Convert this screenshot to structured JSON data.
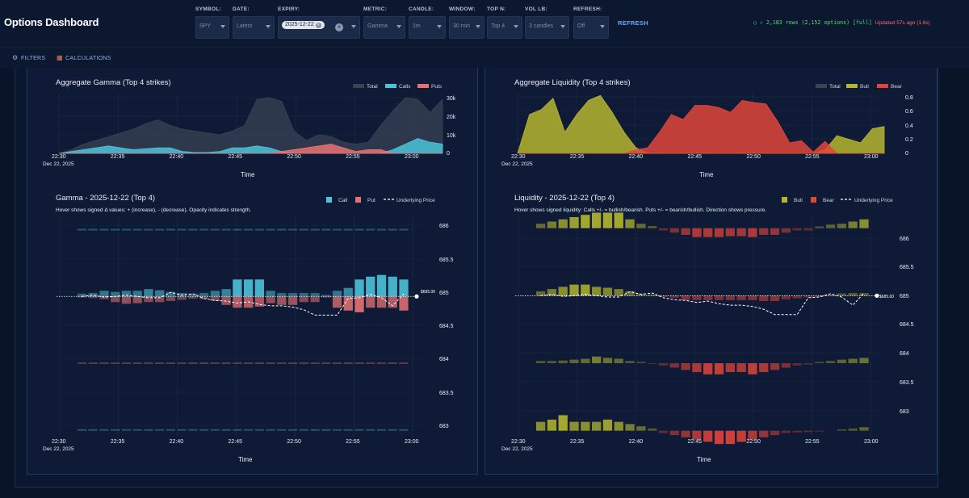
{
  "app": {
    "title": "Options Dashboard"
  },
  "controls": {
    "symbol": {
      "label": "SYMBOL:",
      "value": "SPY"
    },
    "date": {
      "label": "DATE:",
      "value": "Latest"
    },
    "expiry": {
      "label": "EXPIRY:",
      "value": "2025-12-22"
    },
    "metric": {
      "label": "METRIC:",
      "value": "Gamma"
    },
    "candle": {
      "label": "CANDLE:",
      "value": "1m"
    },
    "window": {
      "label": "WINDOW:",
      "value": "30 min"
    },
    "topn": {
      "label": "TOP N:",
      "value": "Top 4"
    },
    "vollb": {
      "label": "VOL LB:",
      "value": "3 candles"
    },
    "refresh": {
      "label": "REFRESH:",
      "value": "Off"
    },
    "refresh_button": "REFRESH"
  },
  "status": {
    "rows": "○ ✓ 2,183 rows (2,152 options) [full]",
    "updated": "Updated 57s ago (1.6s)"
  },
  "tabs": [
    {
      "label": "FILTERS",
      "icon": "gear-icon"
    },
    {
      "label": "CALCULATIONS",
      "icon": "calculator-icon"
    }
  ],
  "colors": {
    "call": "#4bc3d9",
    "put": "#e57373",
    "bull": "#b5b62f",
    "bear": "#e0453a",
    "total": "#3a4354"
  },
  "time_axis": {
    "ticks": [
      "22:30",
      "22:35",
      "22:40",
      "22:45",
      "22:50",
      "22:55",
      "23:00"
    ],
    "date_label": "Dec 22, 2025",
    "title": "Time"
  },
  "agg_gamma": {
    "title": "Aggregate Gamma (Top 4 strikes)",
    "legend": [
      "Total",
      "Calls",
      "Puts"
    ],
    "y_ticks": [
      "30k",
      "20k",
      "10k",
      "0"
    ],
    "chart_data": {
      "type": "area",
      "ylim": [
        0,
        30000
      ],
      "x_minutes": [
        0,
        1,
        2,
        3,
        4,
        5,
        6,
        7,
        8,
        9,
        10,
        11,
        12,
        13,
        14,
        15,
        16,
        17,
        18,
        19,
        20,
        21,
        22,
        23,
        24,
        25,
        26,
        27,
        28,
        29,
        30,
        31
      ],
      "series": [
        {
          "name": "Total",
          "values": [
            0,
            2000,
            5000,
            7000,
            9000,
            11000,
            13000,
            16000,
            18000,
            15000,
            13000,
            12000,
            11000,
            10000,
            12000,
            15000,
            29000,
            30000,
            28000,
            12000,
            7000,
            10000,
            9000,
            6000,
            5000,
            6000,
            15000,
            23000,
            30000,
            29000,
            22000,
            29000
          ]
        },
        {
          "name": "Calls",
          "values": [
            0,
            1000,
            2000,
            3000,
            4000,
            3000,
            2000,
            2500,
            3000,
            3000,
            1000,
            500,
            500,
            1000,
            3000,
            3000,
            4000,
            3000,
            1000,
            0,
            0,
            0,
            0,
            0,
            0,
            0,
            0,
            2000,
            5000,
            8000,
            6000,
            5000
          ]
        },
        {
          "name": "Puts",
          "values": [
            0,
            0,
            0,
            0,
            0,
            0,
            0,
            0,
            0,
            0,
            0,
            0,
            0,
            0,
            0,
            0,
            0,
            0,
            1000,
            2000,
            3000,
            4000,
            5000,
            3000,
            1000,
            2000,
            2000,
            0,
            0,
            0,
            0,
            0
          ]
        }
      ]
    }
  },
  "agg_liq": {
    "title": "Aggregate Liquidity (Top 4 strikes)",
    "legend": [
      "Total",
      "Bull",
      "Bear"
    ],
    "y_ticks": [
      "0.8",
      "0.6",
      "0.4",
      "0.2",
      "0"
    ],
    "chart_data": {
      "type": "area",
      "ylim": [
        0,
        0.8
      ],
      "x_minutes": [
        0,
        1,
        2,
        3,
        4,
        5,
        6,
        7,
        8,
        9,
        10,
        11,
        12,
        13,
        14,
        15,
        16,
        17,
        18,
        19,
        20,
        21,
        22,
        23,
        24,
        25,
        26,
        27,
        28,
        29,
        30,
        31
      ],
      "series": [
        {
          "name": "Bull",
          "values": [
            0,
            0.55,
            0.62,
            0.78,
            0.3,
            0.55,
            0.75,
            0.82,
            0.58,
            0.3,
            0.08,
            0,
            0,
            0,
            0,
            0,
            0,
            0,
            0,
            0,
            0,
            0,
            0,
            0,
            0,
            0,
            0.05,
            0.25,
            0.2,
            0.15,
            0.35,
            0.38
          ]
        },
        {
          "name": "Bear",
          "values": [
            0,
            0,
            0,
            0,
            0,
            0,
            0,
            0,
            0,
            0,
            0.05,
            0.08,
            0.3,
            0.55,
            0.48,
            0.68,
            0.68,
            0.65,
            0.58,
            0.75,
            0.72,
            0.7,
            0.45,
            0.15,
            0.18,
            0.02,
            0.17,
            0,
            0,
            0,
            0,
            0
          ]
        }
      ]
    }
  },
  "gamma_strikes": {
    "title": "Gamma - 2025-12-22 (Top 4)",
    "subtitle": "Hover shows signed Δ values: + (increase), - (decrease). Opacity indicates strength.",
    "legend": [
      "Call",
      "Put",
      "Underlying Price"
    ],
    "price_label": "$685.00",
    "y_ticks": [
      "686",
      "685.5",
      "685",
      "684.5",
      "684",
      "683.5",
      "683"
    ],
    "chart_data": {
      "type": "bar",
      "strikes": [
        686,
        685,
        684,
        683
      ],
      "ylim": [
        682.9,
        686.2
      ],
      "x_minutes": [
        2,
        3,
        4,
        5,
        6,
        7,
        8,
        9,
        10,
        11,
        12,
        13,
        14,
        15,
        16,
        17,
        18,
        19,
        20,
        21,
        22,
        23,
        24,
        25,
        26,
        27,
        28,
        29,
        30,
        31
      ],
      "series": [
        {
          "name": "Call 685",
          "values": [
            0.05,
            0.06,
            0.1,
            0.08,
            0.1,
            0.1,
            0.13,
            0.11,
            0.08,
            0.06,
            0.05,
            0.06,
            0.1,
            0.13,
            0.3,
            0.3,
            0.3,
            0.1,
            0.06,
            0.06,
            0.06,
            0.06,
            0.03,
            0.1,
            0.15,
            0.3,
            0.35,
            0.38,
            0.35,
            0.3
          ]
        },
        {
          "name": "Put 685",
          "values": [
            -0.02,
            -0.03,
            -0.05,
            -0.1,
            -0.13,
            -0.12,
            -0.1,
            -0.1,
            -0.08,
            -0.06,
            -0.04,
            -0.05,
            -0.08,
            -0.15,
            -0.2,
            -0.2,
            -0.18,
            -0.12,
            -0.15,
            -0.15,
            -0.1,
            -0.1,
            -0.02,
            -0.2,
            -0.25,
            -0.28,
            -0.2,
            -0.2,
            -0.2,
            -0.25
          ]
        },
        {
          "name": "Underlying Price",
          "values": [
            685.0,
            685.02,
            684.99,
            685.0,
            685.02,
            685.0,
            684.98,
            684.98,
            685.06,
            685.02,
            685.04,
            684.97,
            684.94,
            684.93,
            684.9,
            684.92,
            684.88,
            684.86,
            684.86,
            684.84,
            684.8,
            684.72,
            684.72,
            684.72,
            684.97,
            684.98,
            685.03,
            684.98,
            684.86,
            685.04
          ]
        }
      ]
    }
  },
  "liq_strikes": {
    "title": "Liquidity - 2025-12-22 (Top 4)",
    "subtitle": "Hover shows signed liquidity: Calls +/- = bullish/bearish. Puts +/- = bearish/bullish. Direction shows pressure.",
    "legend": [
      "Bull",
      "Bear",
      "Underlying Price"
    ],
    "price_label": "$685.00",
    "y_ticks": [
      "686",
      "685.5",
      "685",
      "684.5",
      "684",
      "683.5",
      "683"
    ],
    "chart_data": {
      "type": "bar",
      "strikes": [
        686,
        685,
        684,
        683
      ],
      "ylim": [
        682.9,
        686.2
      ],
      "x_minutes": [
        2,
        3,
        4,
        5,
        6,
        7,
        8,
        9,
        10,
        11,
        12,
        13,
        14,
        15,
        16,
        17,
        18,
        19,
        20,
        21,
        22,
        23,
        24,
        25,
        26,
        27,
        28,
        29,
        30,
        31
      ],
      "series": [
        {
          "name": "Strike 686",
          "values": [
            0.1,
            0.15,
            0.2,
            0.25,
            0.3,
            0.35,
            0.35,
            0.35,
            0.2,
            0.1,
            0.05,
            -0.05,
            -0.1,
            -0.15,
            -0.2,
            -0.2,
            -0.2,
            -0.18,
            -0.18,
            -0.2,
            -0.15,
            -0.15,
            -0.1,
            -0.05,
            -0.05,
            0.04,
            0.08,
            0.1,
            0.15,
            0.2
          ]
        },
        {
          "name": "Strike 685",
          "values": [
            0.1,
            0.15,
            0.2,
            0.25,
            0.25,
            0.2,
            0.18,
            0.15,
            0.1,
            0.05,
            0.03,
            -0.03,
            -0.05,
            -0.1,
            -0.1,
            -0.1,
            -0.1,
            -0.1,
            -0.1,
            -0.1,
            -0.12,
            -0.12,
            -0.08,
            -0.06,
            -0.04,
            -0.03,
            0.02,
            0.05,
            0.06,
            0.06
          ]
        },
        {
          "name": "Strike 684",
          "values": [
            0.05,
            0.05,
            0.06,
            0.08,
            0.1,
            0.15,
            0.12,
            0.1,
            0.05,
            0.03,
            -0.02,
            -0.05,
            -0.1,
            -0.15,
            -0.2,
            -0.25,
            -0.25,
            -0.2,
            -0.2,
            -0.25,
            -0.2,
            -0.15,
            -0.1,
            -0.05,
            -0.03,
            0.03,
            0.05,
            0.08,
            0.1,
            0.12
          ]
        },
        {
          "name": "Strike 683",
          "values": [
            0.2,
            0.25,
            0.35,
            0.2,
            0.2,
            0.2,
            0.25,
            0.2,
            0.15,
            0.1,
            0.05,
            -0.05,
            -0.1,
            -0.15,
            -0.2,
            -0.25,
            -0.3,
            -0.3,
            -0.25,
            -0.2,
            -0.15,
            -0.1,
            -0.05,
            -0.04,
            -0.03,
            -0.02,
            0,
            0.03,
            0.05,
            0.08
          ]
        },
        {
          "name": "Underlying Price",
          "values": [
            685.0,
            685.02,
            684.99,
            685.0,
            685.02,
            685.0,
            684.98,
            684.98,
            685.06,
            685.02,
            685.04,
            684.97,
            684.94,
            684.93,
            684.9,
            684.92,
            684.88,
            684.86,
            684.86,
            684.84,
            684.8,
            684.72,
            684.72,
            684.72,
            684.97,
            684.98,
            685.03,
            684.98,
            684.86,
            685.04
          ]
        }
      ]
    }
  }
}
